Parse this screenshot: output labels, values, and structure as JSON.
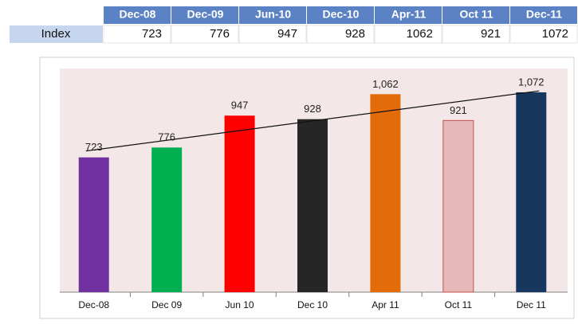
{
  "table": {
    "header": [
      "Dec-08",
      "Dec-09",
      "Jun-10",
      "Dec-10",
      "Apr-11",
      "Oct 11",
      "Dec-11"
    ],
    "rows": [
      {
        "label": "Index",
        "values": [
          723,
          776,
          947,
          928,
          1062,
          921,
          1072
        ]
      }
    ]
  },
  "chart_data": {
    "type": "bar",
    "categories": [
      "Dec-08",
      "Dec 09",
      "Jun 10",
      "Dec 10",
      "Apr 11",
      "Oct 11",
      "Dec 11"
    ],
    "values": [
      723,
      776,
      947,
      928,
      1062,
      921,
      1072
    ],
    "value_labels": [
      "723",
      "776",
      "947",
      "928",
      "1,062",
      "921",
      "1,072"
    ],
    "colors": [
      "#7030a0",
      "#00b050",
      "#ff0000",
      "#262626",
      "#e36c09",
      "#e6b9b8",
      "#17375e"
    ],
    "ylim": [
      0,
      1200
    ],
    "trendline": "linear"
  }
}
